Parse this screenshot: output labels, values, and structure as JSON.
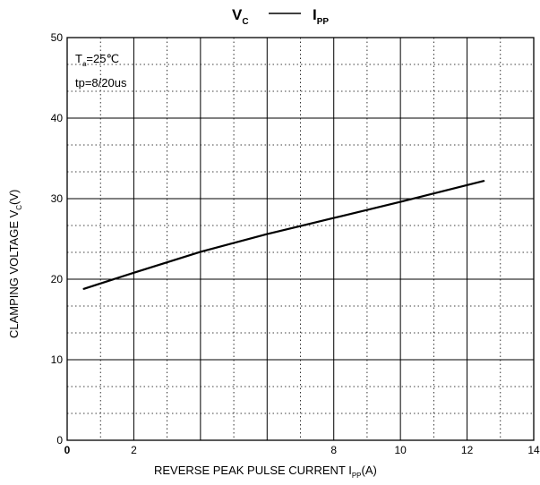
{
  "chart_data": {
    "type": "line",
    "title": {
      "left_main": "V",
      "left_sub": "C",
      "right_main": "I",
      "right_sub": "PP"
    },
    "xlabel": {
      "prefix": "REVERSE PEAK PULSE CURRENT  I",
      "sub": "PP",
      "suffix": "(A)"
    },
    "ylabel": {
      "prefix": "CLAMPING VOLTAGE  V",
      "sub": "C",
      "suffix": "(V)"
    },
    "xlim": [
      0,
      14
    ],
    "ylim": [
      0,
      50
    ],
    "x_ticks": [
      "0",
      "2",
      "8",
      "10",
      "12",
      "14"
    ],
    "x_tick_values": [
      0,
      2,
      8,
      10,
      12,
      14
    ],
    "y_ticks": [
      "0",
      "10",
      "20",
      "30",
      "40",
      "50"
    ],
    "y_tick_values": [
      0,
      10,
      20,
      30,
      40,
      50
    ],
    "grid": true,
    "annotations": {
      "line1_main": "T",
      "line1_sub": "a",
      "line1_rest": "=25℃",
      "line2": "tp=8/20us"
    },
    "series": [
      {
        "x": [
          0.5,
          2.0,
          4.0,
          6.0,
          8.0,
          10.0,
          12.5
        ],
        "y": [
          18.8,
          20.8,
          23.4,
          25.6,
          27.6,
          29.6,
          32.2
        ]
      }
    ]
  }
}
